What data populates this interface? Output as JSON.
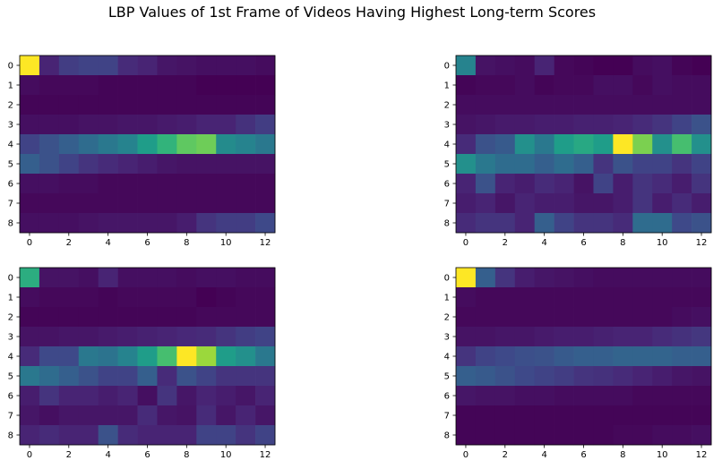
{
  "figure": {
    "suptitle": "LBP Values of 1st Frame of Videos Having Highest Long-term Scores"
  },
  "chart_data": [
    {
      "type": "heatmap",
      "colormap": "viridis",
      "vmin": 0,
      "vmax": 1,
      "x_ticks": [
        0,
        2,
        4,
        6,
        8,
        10,
        12
      ],
      "y_ticks": [
        0,
        1,
        2,
        3,
        4,
        5,
        6,
        7,
        8
      ],
      "values": [
        [
          1.0,
          0.1,
          0.18,
          0.2,
          0.2,
          0.12,
          0.1,
          0.06,
          0.05,
          0.04,
          0.04,
          0.04,
          0.03
        ],
        [
          0.03,
          0.02,
          0.02,
          0.02,
          0.01,
          0.01,
          0.01,
          0.01,
          0.01,
          0.0,
          0.0,
          0.0,
          0.0
        ],
        [
          0.01,
          0.01,
          0.01,
          0.01,
          0.01,
          0.01,
          0.01,
          0.01,
          0.01,
          0.01,
          0.01,
          0.01,
          0.01
        ],
        [
          0.04,
          0.04,
          0.04,
          0.05,
          0.05,
          0.06,
          0.06,
          0.07,
          0.08,
          0.1,
          0.1,
          0.14,
          0.18
        ],
        [
          0.2,
          0.25,
          0.3,
          0.35,
          0.4,
          0.45,
          0.55,
          0.65,
          0.75,
          0.78,
          0.48,
          0.45,
          0.4
        ],
        [
          0.3,
          0.25,
          0.2,
          0.15,
          0.12,
          0.1,
          0.08,
          0.06,
          0.05,
          0.05,
          0.05,
          0.05,
          0.05
        ],
        [
          0.04,
          0.04,
          0.03,
          0.03,
          0.02,
          0.02,
          0.02,
          0.02,
          0.02,
          0.02,
          0.02,
          0.02,
          0.02
        ],
        [
          0.02,
          0.02,
          0.02,
          0.02,
          0.02,
          0.02,
          0.02,
          0.02,
          0.02,
          0.02,
          0.02,
          0.02,
          0.02
        ],
        [
          0.04,
          0.04,
          0.04,
          0.05,
          0.06,
          0.06,
          0.06,
          0.06,
          0.08,
          0.15,
          0.18,
          0.18,
          0.22
        ]
      ]
    },
    {
      "type": "heatmap",
      "colormap": "viridis",
      "vmin": 0,
      "vmax": 1,
      "x_ticks": [
        0,
        2,
        4,
        6,
        8,
        10,
        12
      ],
      "y_ticks": [
        0,
        1,
        2,
        3,
        4,
        5,
        6,
        7,
        8
      ],
      "values": [
        [
          0.45,
          0.05,
          0.04,
          0.03,
          0.1,
          0.02,
          0.01,
          0.0,
          0.0,
          0.03,
          0.04,
          0.01,
          0.0
        ],
        [
          0.01,
          0.02,
          0.02,
          0.03,
          0.01,
          0.02,
          0.02,
          0.04,
          0.04,
          0.02,
          0.04,
          0.03,
          0.03
        ],
        [
          0.03,
          0.03,
          0.03,
          0.03,
          0.03,
          0.03,
          0.03,
          0.03,
          0.03,
          0.03,
          0.03,
          0.03,
          0.03
        ],
        [
          0.05,
          0.06,
          0.07,
          0.07,
          0.08,
          0.08,
          0.09,
          0.09,
          0.1,
          0.12,
          0.15,
          0.2,
          0.25
        ],
        [
          0.12,
          0.25,
          0.28,
          0.5,
          0.4,
          0.55,
          0.6,
          0.55,
          1.0,
          0.8,
          0.5,
          0.7,
          0.5
        ],
        [
          0.5,
          0.4,
          0.35,
          0.35,
          0.3,
          0.35,
          0.3,
          0.15,
          0.25,
          0.2,
          0.2,
          0.15,
          0.2
        ],
        [
          0.1,
          0.25,
          0.1,
          0.08,
          0.12,
          0.1,
          0.05,
          0.2,
          0.08,
          0.15,
          0.12,
          0.08,
          0.15
        ],
        [
          0.08,
          0.1,
          0.06,
          0.1,
          0.08,
          0.08,
          0.06,
          0.06,
          0.08,
          0.15,
          0.08,
          0.12,
          0.08
        ],
        [
          0.12,
          0.15,
          0.15,
          0.1,
          0.3,
          0.2,
          0.15,
          0.15,
          0.12,
          0.35,
          0.35,
          0.22,
          0.25
        ]
      ]
    },
    {
      "type": "heatmap",
      "colormap": "viridis",
      "vmin": 0,
      "vmax": 1,
      "x_ticks": [
        0,
        2,
        4,
        6,
        8,
        10,
        12
      ],
      "y_ticks": [
        0,
        1,
        2,
        3,
        4,
        5,
        6,
        7,
        8
      ],
      "values": [
        [
          0.62,
          0.05,
          0.05,
          0.04,
          0.1,
          0.04,
          0.04,
          0.04,
          0.03,
          0.04,
          0.04,
          0.03,
          0.03
        ],
        [
          0.03,
          0.02,
          0.02,
          0.02,
          0.01,
          0.02,
          0.02,
          0.02,
          0.02,
          0.0,
          0.01,
          0.02,
          0.02
        ],
        [
          0.01,
          0.01,
          0.01,
          0.01,
          0.01,
          0.01,
          0.01,
          0.01,
          0.01,
          0.02,
          0.02,
          0.02,
          0.02
        ],
        [
          0.05,
          0.05,
          0.06,
          0.06,
          0.07,
          0.08,
          0.09,
          0.1,
          0.11,
          0.12,
          0.15,
          0.18,
          0.2
        ],
        [
          0.12,
          0.22,
          0.22,
          0.4,
          0.38,
          0.45,
          0.55,
          0.7,
          1.0,
          0.85,
          0.55,
          0.5,
          0.4
        ],
        [
          0.4,
          0.35,
          0.3,
          0.25,
          0.2,
          0.2,
          0.3,
          0.12,
          0.25,
          0.2,
          0.15,
          0.15,
          0.15
        ],
        [
          0.08,
          0.15,
          0.1,
          0.1,
          0.08,
          0.1,
          0.04,
          0.15,
          0.06,
          0.1,
          0.08,
          0.06,
          0.1
        ],
        [
          0.06,
          0.04,
          0.06,
          0.06,
          0.06,
          0.06,
          0.12,
          0.06,
          0.05,
          0.12,
          0.06,
          0.1,
          0.06
        ],
        [
          0.1,
          0.12,
          0.1,
          0.1,
          0.25,
          0.12,
          0.1,
          0.1,
          0.1,
          0.2,
          0.2,
          0.15,
          0.2
        ]
      ]
    },
    {
      "type": "heatmap",
      "colormap": "viridis",
      "vmin": 0,
      "vmax": 1,
      "x_ticks": [
        0,
        2,
        4,
        6,
        8,
        10,
        12
      ],
      "y_ticks": [
        0,
        1,
        2,
        3,
        4,
        5,
        6,
        7,
        8
      ],
      "values": [
        [
          1.0,
          0.3,
          0.15,
          0.08,
          0.06,
          0.05,
          0.04,
          0.03,
          0.03,
          0.03,
          0.03,
          0.03,
          0.03
        ],
        [
          0.03,
          0.02,
          0.02,
          0.02,
          0.02,
          0.02,
          0.02,
          0.02,
          0.02,
          0.02,
          0.02,
          0.02,
          0.02
        ],
        [
          0.02,
          0.02,
          0.02,
          0.02,
          0.02,
          0.02,
          0.02,
          0.02,
          0.02,
          0.02,
          0.02,
          0.03,
          0.04
        ],
        [
          0.05,
          0.05,
          0.06,
          0.06,
          0.07,
          0.08,
          0.08,
          0.09,
          0.1,
          0.1,
          0.12,
          0.14,
          0.16
        ],
        [
          0.15,
          0.2,
          0.22,
          0.24,
          0.25,
          0.28,
          0.3,
          0.3,
          0.32,
          0.32,
          0.32,
          0.3,
          0.3
        ],
        [
          0.3,
          0.28,
          0.25,
          0.22,
          0.2,
          0.18,
          0.15,
          0.14,
          0.12,
          0.1,
          0.08,
          0.06,
          0.05
        ],
        [
          0.06,
          0.05,
          0.05,
          0.04,
          0.04,
          0.03,
          0.03,
          0.03,
          0.03,
          0.02,
          0.02,
          0.02,
          0.02
        ],
        [
          0.01,
          0.01,
          0.01,
          0.01,
          0.01,
          0.01,
          0.01,
          0.01,
          0.01,
          0.01,
          0.01,
          0.01,
          0.01
        ],
        [
          0.01,
          0.01,
          0.01,
          0.01,
          0.01,
          0.01,
          0.01,
          0.01,
          0.02,
          0.02,
          0.03,
          0.03,
          0.04
        ]
      ]
    }
  ]
}
